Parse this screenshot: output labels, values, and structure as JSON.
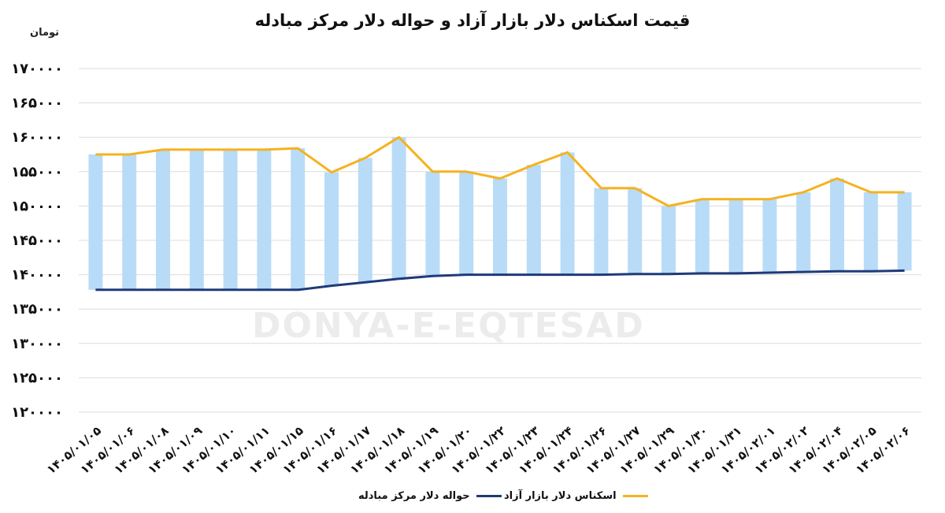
{
  "chart_data": {
    "type": "line",
    "title": "قیمت اسکناس دلار بازار آزاد و حواله دلار مرکز مبادله",
    "ylabel": "تومان",
    "xlabel": "",
    "ylim": [
      120000,
      170000
    ],
    "yticks": [
      "۱۷۰۰۰۰",
      "۱۶۵۰۰۰",
      "۱۶۰۰۰۰",
      "۱۵۵۰۰۰",
      "۱۵۰۰۰۰",
      "۱۴۵۰۰۰",
      "۱۴۰۰۰۰",
      "۱۳۵۰۰۰",
      "۱۳۰۰۰۰",
      "۱۲۵۰۰۰",
      "۱۲۰۰۰۰"
    ],
    "ytick_values": [
      170000,
      165000,
      160000,
      155000,
      150000,
      145000,
      140000,
      135000,
      130000,
      125000,
      120000
    ],
    "categories": [
      "۱۴۰۵/۰۱/۰۵",
      "۱۴۰۵/۰۱/۰۶",
      "۱۴۰۵/۰۱/۰۸",
      "۱۴۰۵/۰۱/۰۹",
      "۱۴۰۵/۰۱/۱۰",
      "۱۴۰۵/۰۱/۱۱",
      "۱۴۰۵/۰۱/۱۵",
      "۱۴۰۵/۰۱/۱۶",
      "۱۴۰۵/۰۱/۱۷",
      "۱۴۰۵/۰۱/۱۸",
      "۱۴۰۵/۰۱/۱۹",
      "۱۴۰۵/۰۱/۲۰",
      "۱۴۰۵/۰۱/۲۲",
      "۱۴۰۵/۰۱/۲۳",
      "۱۴۰۵/۰۱/۲۴",
      "۱۴۰۵/۰۱/۲۶",
      "۱۴۰۵/۰۱/۲۷",
      "۱۴۰۵/۰۱/۲۹",
      "۱۴۰۵/۰۱/۳۰",
      "۱۴۰۵/۰۱/۳۱",
      "۱۴۰۵/۰۲/۰۱",
      "۱۴۰۵/۰۲/۰۲",
      "۱۴۰۵/۰۲/۰۴",
      "۱۴۰۵/۰۲/۰۵",
      "۱۴۰۵/۰۲/۰۶"
    ],
    "series": [
      {
        "name": "حواله دلار مرکز مبادله",
        "color": "#1f3a7a",
        "values": [
          137800,
          137800,
          137800,
          137800,
          137800,
          137800,
          137800,
          138400,
          138900,
          139400,
          139800,
          140000,
          140000,
          140000,
          140000,
          140000,
          140100,
          140100,
          140200,
          140200,
          140300,
          140400,
          140500,
          140500,
          140600
        ]
      },
      {
        "name": "اسکناس دلار بازار آزاد",
        "color": "#f5b21f",
        "values": [
          157500,
          157500,
          158200,
          158200,
          158200,
          158200,
          158400,
          154900,
          157000,
          160000,
          155000,
          155000,
          154000,
          156000,
          157800,
          152600,
          152600,
          150000,
          151000,
          151000,
          151000,
          152000,
          154000,
          152000,
          152000
        ]
      }
    ],
    "bar_color": "#b8dbf7",
    "grid": true,
    "legend_position": "bottom"
  },
  "watermark": "DONYA-E-EQTESAD"
}
